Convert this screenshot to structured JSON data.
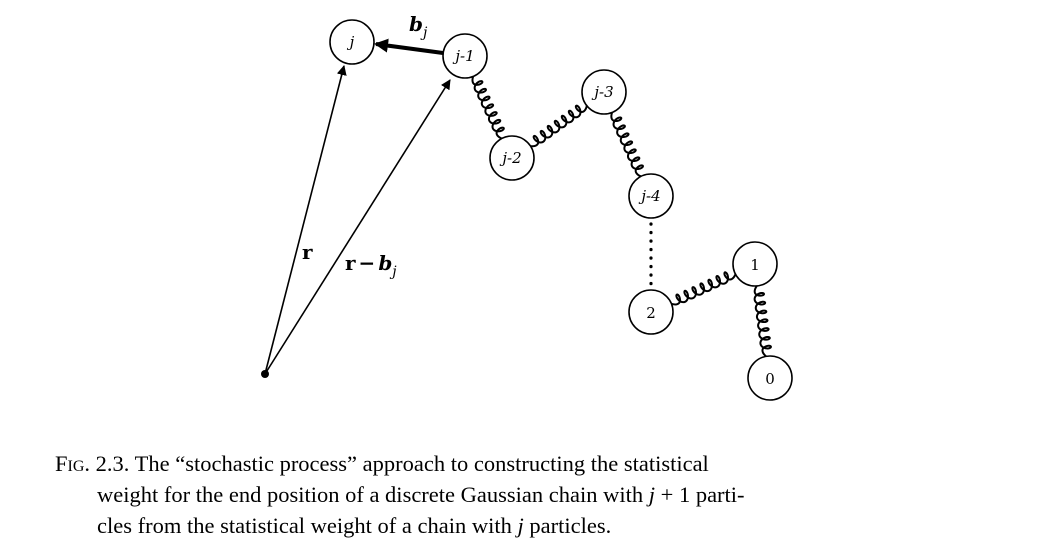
{
  "nodes": {
    "j": "j",
    "j1": "j-1",
    "j2": "j-2",
    "j3": "j-3",
    "j4": "j-4",
    "n2": "2",
    "n1": "1",
    "n0": "0"
  },
  "vectors": {
    "r": "r",
    "r_minus_bj": {
      "r": "r",
      "minus": "−",
      "b": "b",
      "sub": "j"
    },
    "bj": {
      "b": "b",
      "sub": "j"
    }
  },
  "caption": {
    "label": "Fig. 2.3.",
    "line1": "The “stochastic process” approach to constructing the statistical",
    "line2_a": "weight for the end position of a discrete Gaussian chain with ",
    "line2_var": "j",
    "line2_b": " + 1 parti-",
    "line3_a": "cles from the statistical weight of a chain with ",
    "line3_var": "j",
    "line3_b": " particles."
  }
}
